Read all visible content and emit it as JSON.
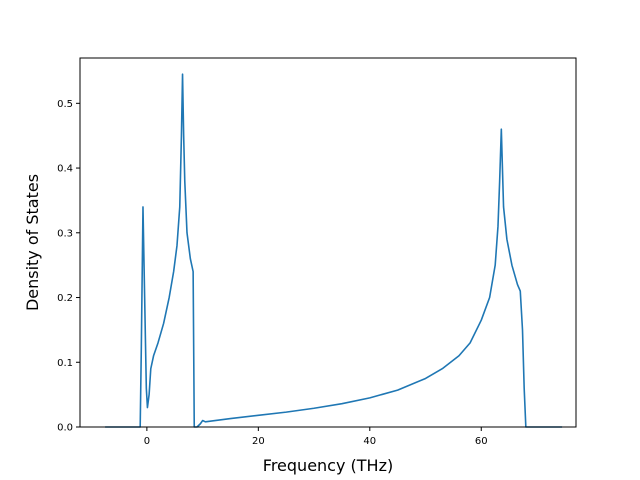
{
  "chart_data": {
    "type": "line",
    "title": "",
    "xlabel": "Frequency (THz)",
    "ylabel": "Density of States",
    "xlim": [
      -12,
      77
    ],
    "ylim": [
      0,
      0.57
    ],
    "x_ticks": [
      0,
      20,
      40,
      60
    ],
    "x_tick_labels": [
      "0",
      "20",
      "40",
      "60"
    ],
    "y_ticks": [
      0.0,
      0.1,
      0.2,
      0.3,
      0.4,
      0.5
    ],
    "y_tick_labels": [
      "0.0",
      "0.1",
      "0.2",
      "0.3",
      "0.4",
      "0.5"
    ],
    "grid": false,
    "legend": "none",
    "series": [
      {
        "color": "#1f77b4",
        "x": [
          -7.5,
          -1.2,
          -1.0,
          -0.7,
          -0.4,
          -0.1,
          0.1,
          0.4,
          0.7,
          1.2,
          2.0,
          3.0,
          4.0,
          4.8,
          5.4,
          5.9,
          6.2,
          6.4,
          6.6,
          6.8,
          7.2,
          7.8,
          8.3,
          8.5,
          9.0,
          9.6,
          10.0,
          10.5,
          15,
          20,
          25,
          30,
          35,
          40,
          45,
          50,
          53,
          56,
          58,
          60,
          61.5,
          62.5,
          63.0,
          63.3,
          63.6,
          64.0,
          64.6,
          65.5,
          66.5,
          67.0,
          67.4,
          67.7,
          68.0,
          74.5
        ],
        "y": [
          0.0,
          0.0,
          0.12,
          0.34,
          0.2,
          0.06,
          0.03,
          0.05,
          0.09,
          0.11,
          0.13,
          0.16,
          0.2,
          0.24,
          0.28,
          0.34,
          0.45,
          0.545,
          0.45,
          0.38,
          0.3,
          0.26,
          0.24,
          0.0,
          0.0,
          0.005,
          0.01,
          0.008,
          0.013,
          0.018,
          0.023,
          0.029,
          0.036,
          0.045,
          0.057,
          0.075,
          0.09,
          0.11,
          0.13,
          0.165,
          0.2,
          0.25,
          0.31,
          0.38,
          0.46,
          0.34,
          0.29,
          0.25,
          0.22,
          0.21,
          0.15,
          0.06,
          0.0,
          0.0
        ]
      }
    ]
  }
}
